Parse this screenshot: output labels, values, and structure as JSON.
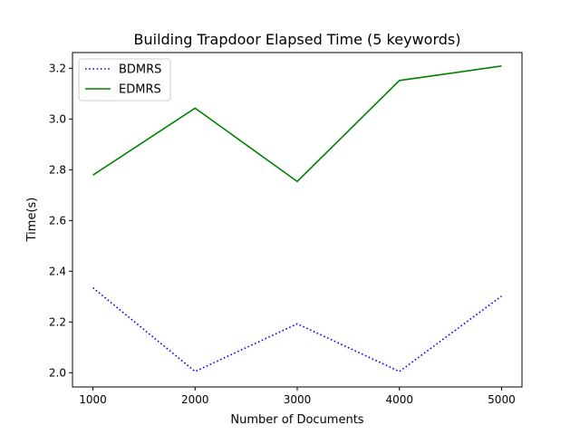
{
  "chart_data": {
    "type": "line",
    "title": "Building Trapdoor Elapsed Time (5 keywords)",
    "xlabel": "Number of Documents",
    "ylabel": "Time(s)",
    "x": [
      1000,
      2000,
      3000,
      4000,
      5000
    ],
    "x_ticks": [
      "1000",
      "2000",
      "3000",
      "4000",
      "5000"
    ],
    "y_ticks": [
      "2.0",
      "2.2",
      "2.4",
      "2.6",
      "2.8",
      "3.0",
      "3.2"
    ],
    "xlim": [
      800,
      5200
    ],
    "ylim": [
      1.944,
      3.262
    ],
    "grid": false,
    "legend_position": "top-left",
    "series": [
      {
        "name": "BDMRS",
        "values": [
          2.335,
          2.005,
          2.193,
          2.005,
          2.302
        ],
        "color": "#0000ff",
        "style": "dotted"
      },
      {
        "name": "EDMRS",
        "values": [
          2.779,
          3.043,
          2.754,
          3.152,
          3.209
        ],
        "color": "#008000",
        "style": "solid"
      }
    ]
  }
}
